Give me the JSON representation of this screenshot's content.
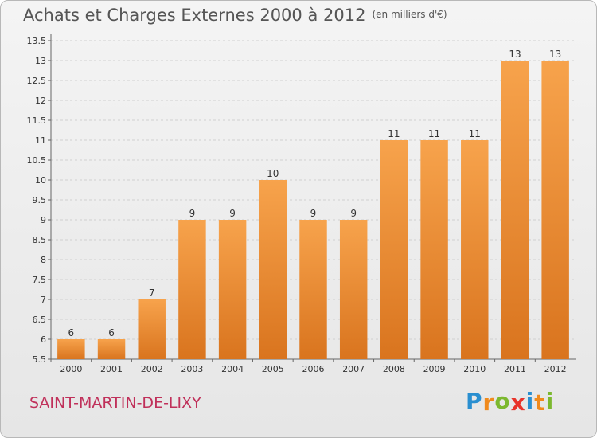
{
  "header": {
    "title": "Achats et Charges Externes 2000 à 2012",
    "subtitle": "(en milliers d'€)"
  },
  "footer": {
    "place": "SAINT-MARTIN-DE-LIXY"
  },
  "logo": {
    "letters": [
      "P",
      "r",
      "o",
      "x",
      "i",
      "t",
      "i"
    ],
    "colors": [
      "#2a8fd0",
      "#f08a1c",
      "#7cb82f",
      "#e8332a",
      "#2a8fd0",
      "#f08a1c",
      "#7cb82f"
    ]
  },
  "colors": {
    "bar_light": "#f7a34c",
    "bar_dark": "#d9741e",
    "grid": "#d0d0d0",
    "axis_text": "#333333"
  },
  "chart_data": {
    "type": "bar",
    "categories": [
      "2000",
      "2001",
      "2002",
      "2003",
      "2004",
      "2005",
      "2006",
      "2007",
      "2008",
      "2009",
      "2010",
      "2011",
      "2012"
    ],
    "values": [
      6,
      6,
      7,
      9,
      9,
      10,
      9,
      9,
      11,
      11,
      11,
      13,
      13
    ],
    "value_labels": [
      "6",
      "6",
      "7",
      "9",
      "9",
      "10",
      "9",
      "9",
      "11",
      "11",
      "11",
      "13",
      "13"
    ],
    "yticks": [
      "5.5",
      "6",
      "6.5",
      "7",
      "7.5",
      "8",
      "8.5",
      "9",
      "9.5",
      "10",
      "10.5",
      "11",
      "11.5",
      "12",
      "12.5",
      "13",
      "13.5"
    ],
    "ylim": [
      5.5,
      13.5
    ],
    "grid": true
  }
}
